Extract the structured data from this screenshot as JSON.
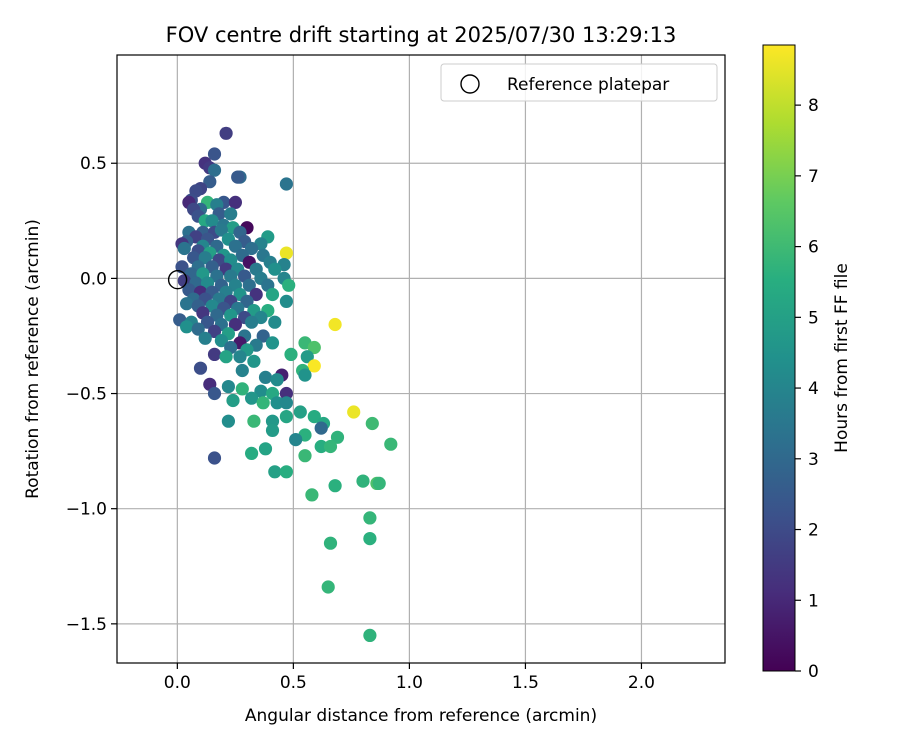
{
  "chart_data": {
    "type": "scatter",
    "title": "FOV centre drift starting at 2025/07/30 13:29:13",
    "xlabel": "Angular distance from reference (arcmin)",
    "ylabel": "Rotation from reference (arcmin)",
    "xlim": [
      -0.26,
      2.36
    ],
    "ylim": [
      -1.67,
      0.97
    ],
    "xticks": [
      0.0,
      0.5,
      1.0,
      1.5,
      2.0
    ],
    "xtick_labels": [
      "0.0",
      "0.5",
      "1.0",
      "1.5",
      "2.0"
    ],
    "yticks": [
      0.5,
      0.0,
      -0.5,
      -1.0,
      -1.5
    ],
    "ytick_labels": [
      "0.5",
      "0.0",
      "−0.5",
      "−1.0",
      "−1.5"
    ],
    "grid": true,
    "legend": {
      "placement": "top-right",
      "entries": [
        "Reference platepar"
      ]
    },
    "reference_point": {
      "x": 0.0,
      "y": 0.0
    },
    "colorbar": {
      "label": "Hours from first FF file",
      "range": [
        0,
        8.85
      ],
      "ticks": [
        0,
        1,
        2,
        3,
        4,
        5,
        6,
        7,
        8
      ],
      "tick_labels": [
        "0",
        "1",
        "2",
        "3",
        "4",
        "5",
        "6",
        "7",
        "8"
      ],
      "colormap": "viridis"
    },
    "points": [
      {
        "x": 0.21,
        "y": 0.63,
        "h": 1.6
      },
      {
        "x": 0.16,
        "y": 0.54,
        "h": 2.3
      },
      {
        "x": 0.12,
        "y": 0.5,
        "h": 1.3
      },
      {
        "x": 0.14,
        "y": 0.48,
        "h": 1.5
      },
      {
        "x": 0.16,
        "y": 0.47,
        "h": 3.2
      },
      {
        "x": 0.27,
        "y": 0.44,
        "h": 3.0
      },
      {
        "x": 0.47,
        "y": 0.41,
        "h": 3.4
      },
      {
        "x": 0.14,
        "y": 0.42,
        "h": 2.6
      },
      {
        "x": 0.26,
        "y": 0.44,
        "h": 2.5
      },
      {
        "x": 0.1,
        "y": 0.39,
        "h": 1.8
      },
      {
        "x": 0.08,
        "y": 0.38,
        "h": 2.0
      },
      {
        "x": 0.06,
        "y": 0.34,
        "h": 2.1
      },
      {
        "x": 0.05,
        "y": 0.33,
        "h": 1.0
      },
      {
        "x": 0.13,
        "y": 0.33,
        "h": 5.8
      },
      {
        "x": 0.2,
        "y": 0.33,
        "h": 2.4
      },
      {
        "x": 0.25,
        "y": 0.33,
        "h": 1.2
      },
      {
        "x": 0.17,
        "y": 0.32,
        "h": 3.8
      },
      {
        "x": 0.1,
        "y": 0.3,
        "h": 3.1
      },
      {
        "x": 0.07,
        "y": 0.3,
        "h": 1.9
      },
      {
        "x": 0.18,
        "y": 0.28,
        "h": 2.6
      },
      {
        "x": 0.23,
        "y": 0.28,
        "h": 3.7
      },
      {
        "x": 0.09,
        "y": 0.27,
        "h": 2.2
      },
      {
        "x": 0.12,
        "y": 0.25,
        "h": 5.3
      },
      {
        "x": 0.15,
        "y": 0.25,
        "h": 4.2
      },
      {
        "x": 0.2,
        "y": 0.23,
        "h": 3.5
      },
      {
        "x": 0.24,
        "y": 0.22,
        "h": 4.9
      },
      {
        "x": 0.3,
        "y": 0.22,
        "h": 0.2
      },
      {
        "x": 0.05,
        "y": 0.2,
        "h": 3.3
      },
      {
        "x": 0.11,
        "y": 0.2,
        "h": 2.7
      },
      {
        "x": 0.16,
        "y": 0.2,
        "h": 2.0
      },
      {
        "x": 0.19,
        "y": 0.21,
        "h": 3.6
      },
      {
        "x": 0.27,
        "y": 0.2,
        "h": 2.9
      },
      {
        "x": 0.39,
        "y": 0.18,
        "h": 4.8
      },
      {
        "x": 0.08,
        "y": 0.18,
        "h": 1.7
      },
      {
        "x": 0.13,
        "y": 0.17,
        "h": 2.3
      },
      {
        "x": 0.22,
        "y": 0.17,
        "h": 4.4
      },
      {
        "x": 0.29,
        "y": 0.16,
        "h": 2.6
      },
      {
        "x": 0.36,
        "y": 0.15,
        "h": 3.9
      },
      {
        "x": 0.04,
        "y": 0.16,
        "h": 2.8
      },
      {
        "x": 0.02,
        "y": 0.15,
        "h": 1.4
      },
      {
        "x": 0.03,
        "y": 0.13,
        "h": 3.4
      },
      {
        "x": 0.11,
        "y": 0.14,
        "h": 4.0
      },
      {
        "x": 0.17,
        "y": 0.14,
        "h": 3.0
      },
      {
        "x": 0.25,
        "y": 0.14,
        "h": 3.3
      },
      {
        "x": 0.32,
        "y": 0.13,
        "h": 3.2
      },
      {
        "x": 0.47,
        "y": 0.11,
        "h": 8.6
      },
      {
        "x": 0.09,
        "y": 0.12,
        "h": 2.1
      },
      {
        "x": 0.14,
        "y": 0.11,
        "h": 5.0
      },
      {
        "x": 0.2,
        "y": 0.1,
        "h": 4.6
      },
      {
        "x": 0.28,
        "y": 0.1,
        "h": 3.1
      },
      {
        "x": 0.37,
        "y": 0.1,
        "h": 3.5
      },
      {
        "x": 0.07,
        "y": 0.09,
        "h": 2.4
      },
      {
        "x": 0.12,
        "y": 0.09,
        "h": 3.7
      },
      {
        "x": 0.18,
        "y": 0.08,
        "h": 1.9
      },
      {
        "x": 0.23,
        "y": 0.08,
        "h": 4.3
      },
      {
        "x": 0.31,
        "y": 0.07,
        "h": 0.4
      },
      {
        "x": 0.4,
        "y": 0.07,
        "h": 3.8
      },
      {
        "x": 0.46,
        "y": 0.06,
        "h": 3.9
      },
      {
        "x": 0.02,
        "y": 0.05,
        "h": 2.2
      },
      {
        "x": 0.09,
        "y": 0.05,
        "h": 3.2
      },
      {
        "x": 0.15,
        "y": 0.05,
        "h": 2.7
      },
      {
        "x": 0.21,
        "y": 0.04,
        "h": 1.5
      },
      {
        "x": 0.26,
        "y": 0.04,
        "h": 4.1
      },
      {
        "x": 0.34,
        "y": 0.04,
        "h": 3.6
      },
      {
        "x": 0.42,
        "y": 0.04,
        "h": 4.4
      },
      {
        "x": 0.06,
        "y": 0.02,
        "h": 2.9
      },
      {
        "x": 0.11,
        "y": 0.02,
        "h": 4.7
      },
      {
        "x": 0.17,
        "y": 0.01,
        "h": 3.3
      },
      {
        "x": 0.23,
        "y": 0.01,
        "h": 3.6
      },
      {
        "x": 0.29,
        "y": 0.01,
        "h": 2.5
      },
      {
        "x": 0.36,
        "y": 0.0,
        "h": 3.7
      },
      {
        "x": 0.46,
        "y": 0.0,
        "h": 4.0
      },
      {
        "x": 0.03,
        "y": -0.01,
        "h": 1.6
      },
      {
        "x": 0.08,
        "y": -0.02,
        "h": 3.0
      },
      {
        "x": 0.13,
        "y": -0.02,
        "h": 4.2
      },
      {
        "x": 0.19,
        "y": -0.03,
        "h": 2.8
      },
      {
        "x": 0.25,
        "y": -0.03,
        "h": 3.9
      },
      {
        "x": 0.31,
        "y": -0.03,
        "h": 3.2
      },
      {
        "x": 0.39,
        "y": -0.03,
        "h": 3.4
      },
      {
        "x": 0.48,
        "y": -0.03,
        "h": 5.6
      },
      {
        "x": 0.05,
        "y": -0.05,
        "h": 2.5
      },
      {
        "x": 0.1,
        "y": -0.06,
        "h": 1.1
      },
      {
        "x": 0.15,
        "y": -0.06,
        "h": 2.6
      },
      {
        "x": 0.21,
        "y": -0.06,
        "h": 3.8
      },
      {
        "x": 0.27,
        "y": -0.07,
        "h": 4.5
      },
      {
        "x": 0.34,
        "y": -0.07,
        "h": 1.3
      },
      {
        "x": 0.41,
        "y": -0.07,
        "h": 5.2
      },
      {
        "x": 0.07,
        "y": -0.09,
        "h": 3.1
      },
      {
        "x": 0.12,
        "y": -0.09,
        "h": 2.2
      },
      {
        "x": 0.18,
        "y": -0.09,
        "h": 3.6
      },
      {
        "x": 0.23,
        "y": -0.1,
        "h": 1.8
      },
      {
        "x": 0.3,
        "y": -0.1,
        "h": 2.9
      },
      {
        "x": 0.47,
        "y": -0.1,
        "h": 4.3
      },
      {
        "x": 0.04,
        "y": -0.11,
        "h": 3.4
      },
      {
        "x": 0.09,
        "y": -0.12,
        "h": 2.7
      },
      {
        "x": 0.15,
        "y": -0.12,
        "h": 4.1
      },
      {
        "x": 0.2,
        "y": -0.13,
        "h": 2.3
      },
      {
        "x": 0.26,
        "y": -0.13,
        "h": 3.5
      },
      {
        "x": 0.33,
        "y": -0.14,
        "h": 4.8
      },
      {
        "x": 0.39,
        "y": -0.14,
        "h": 5.5
      },
      {
        "x": 0.11,
        "y": -0.15,
        "h": 1.4
      },
      {
        "x": 0.17,
        "y": -0.16,
        "h": 3.0
      },
      {
        "x": 0.23,
        "y": -0.16,
        "h": 4.6
      },
      {
        "x": 0.29,
        "y": -0.17,
        "h": 2.0
      },
      {
        "x": 0.36,
        "y": -0.17,
        "h": 4.0
      },
      {
        "x": 0.01,
        "y": -0.18,
        "h": 2.6
      },
      {
        "x": 0.06,
        "y": -0.19,
        "h": 3.9
      },
      {
        "x": 0.13,
        "y": -0.19,
        "h": 2.4
      },
      {
        "x": 0.19,
        "y": -0.2,
        "h": 3.3
      },
      {
        "x": 0.25,
        "y": -0.2,
        "h": 1.2
      },
      {
        "x": 0.32,
        "y": -0.19,
        "h": 3.7
      },
      {
        "x": 0.42,
        "y": -0.19,
        "h": 4.2
      },
      {
        "x": 0.68,
        "y": -0.2,
        "h": 8.7
      },
      {
        "x": 0.04,
        "y": -0.21,
        "h": 4.4
      },
      {
        "x": 0.09,
        "y": -0.22,
        "h": 3.1
      },
      {
        "x": 0.16,
        "y": -0.23,
        "h": 1.7
      },
      {
        "x": 0.22,
        "y": -0.24,
        "h": 4.9
      },
      {
        "x": 0.29,
        "y": -0.25,
        "h": 3.4
      },
      {
        "x": 0.37,
        "y": -0.25,
        "h": 2.8
      },
      {
        "x": 0.12,
        "y": -0.26,
        "h": 3.8
      },
      {
        "x": 0.19,
        "y": -0.27,
        "h": 4.3
      },
      {
        "x": 0.27,
        "y": -0.28,
        "h": 0.6
      },
      {
        "x": 0.34,
        "y": -0.29,
        "h": 3.6
      },
      {
        "x": 0.41,
        "y": -0.28,
        "h": 4.5
      },
      {
        "x": 0.55,
        "y": -0.28,
        "h": 5.9
      },
      {
        "x": 0.23,
        "y": -0.3,
        "h": 3.2
      },
      {
        "x": 0.3,
        "y": -0.31,
        "h": 4.7
      },
      {
        "x": 0.59,
        "y": -0.3,
        "h": 6.3
      },
      {
        "x": 0.16,
        "y": -0.33,
        "h": 1.5
      },
      {
        "x": 0.21,
        "y": -0.34,
        "h": 5.1
      },
      {
        "x": 0.27,
        "y": -0.34,
        "h": 4.0
      },
      {
        "x": 0.49,
        "y": -0.33,
        "h": 5.6
      },
      {
        "x": 0.56,
        "y": -0.34,
        "h": 4.8
      },
      {
        "x": 0.33,
        "y": -0.36,
        "h": 4.6
      },
      {
        "x": 0.59,
        "y": -0.38,
        "h": 8.8
      },
      {
        "x": 0.1,
        "y": -0.39,
        "h": 2.1
      },
      {
        "x": 0.28,
        "y": -0.4,
        "h": 3.9
      },
      {
        "x": 0.54,
        "y": -0.4,
        "h": 5.7
      },
      {
        "x": 0.45,
        "y": -0.42,
        "h": 0.8
      },
      {
        "x": 0.55,
        "y": -0.42,
        "h": 4.5
      },
      {
        "x": 0.38,
        "y": -0.43,
        "h": 3.8
      },
      {
        "x": 0.43,
        "y": -0.44,
        "h": 4.2
      },
      {
        "x": 0.14,
        "y": -0.46,
        "h": 1.1
      },
      {
        "x": 0.22,
        "y": -0.47,
        "h": 4.1
      },
      {
        "x": 0.28,
        "y": -0.48,
        "h": 5.7
      },
      {
        "x": 0.36,
        "y": -0.49,
        "h": 4.3
      },
      {
        "x": 0.41,
        "y": -0.5,
        "h": 5.3
      },
      {
        "x": 0.47,
        "y": -0.5,
        "h": 1.2
      },
      {
        "x": 0.16,
        "y": -0.5,
        "h": 2.4
      },
      {
        "x": 0.32,
        "y": -0.52,
        "h": 4.6
      },
      {
        "x": 0.24,
        "y": -0.53,
        "h": 4.9
      },
      {
        "x": 0.37,
        "y": -0.54,
        "h": 5.8
      },
      {
        "x": 0.43,
        "y": -0.54,
        "h": 4.4
      },
      {
        "x": 0.47,
        "y": -0.54,
        "h": 4.1
      },
      {
        "x": 0.76,
        "y": -0.58,
        "h": 8.6
      },
      {
        "x": 0.53,
        "y": -0.58,
        "h": 5.0
      },
      {
        "x": 0.59,
        "y": -0.6,
        "h": 5.4
      },
      {
        "x": 0.47,
        "y": -0.6,
        "h": 5.2
      },
      {
        "x": 0.41,
        "y": -0.62,
        "h": 4.7
      },
      {
        "x": 0.22,
        "y": -0.62,
        "h": 4.3
      },
      {
        "x": 0.33,
        "y": -0.62,
        "h": 5.9
      },
      {
        "x": 0.84,
        "y": -0.63,
        "h": 6.0
      },
      {
        "x": 0.63,
        "y": -0.63,
        "h": 5.3
      },
      {
        "x": 0.62,
        "y": -0.65,
        "h": 3.0
      },
      {
        "x": 0.41,
        "y": -0.66,
        "h": 4.8
      },
      {
        "x": 0.55,
        "y": -0.68,
        "h": 5.6
      },
      {
        "x": 0.69,
        "y": -0.69,
        "h": 5.7
      },
      {
        "x": 0.51,
        "y": -0.7,
        "h": 4.0
      },
      {
        "x": 0.92,
        "y": -0.72,
        "h": 5.9
      },
      {
        "x": 0.62,
        "y": -0.73,
        "h": 5.5
      },
      {
        "x": 0.66,
        "y": -0.73,
        "h": 5.8
      },
      {
        "x": 0.38,
        "y": -0.74,
        "h": 5.1
      },
      {
        "x": 0.32,
        "y": -0.76,
        "h": 5.4
      },
      {
        "x": 0.55,
        "y": -0.77,
        "h": 5.9
      },
      {
        "x": 0.16,
        "y": -0.78,
        "h": 2.2
      },
      {
        "x": 0.42,
        "y": -0.84,
        "h": 5.0
      },
      {
        "x": 0.47,
        "y": -0.84,
        "h": 5.5
      },
      {
        "x": 0.8,
        "y": -0.88,
        "h": 5.7
      },
      {
        "x": 0.86,
        "y": -0.89,
        "h": 6.3
      },
      {
        "x": 0.87,
        "y": -0.89,
        "h": 5.8
      },
      {
        "x": 0.68,
        "y": -0.9,
        "h": 5.6
      },
      {
        "x": 0.58,
        "y": -0.94,
        "h": 5.9
      },
      {
        "x": 0.83,
        "y": -1.04,
        "h": 5.8
      },
      {
        "x": 0.83,
        "y": -1.13,
        "h": 5.6
      },
      {
        "x": 0.66,
        "y": -1.15,
        "h": 5.7
      },
      {
        "x": 0.65,
        "y": -1.34,
        "h": 5.8
      },
      {
        "x": 0.83,
        "y": -1.55,
        "h": 5.7
      }
    ]
  }
}
